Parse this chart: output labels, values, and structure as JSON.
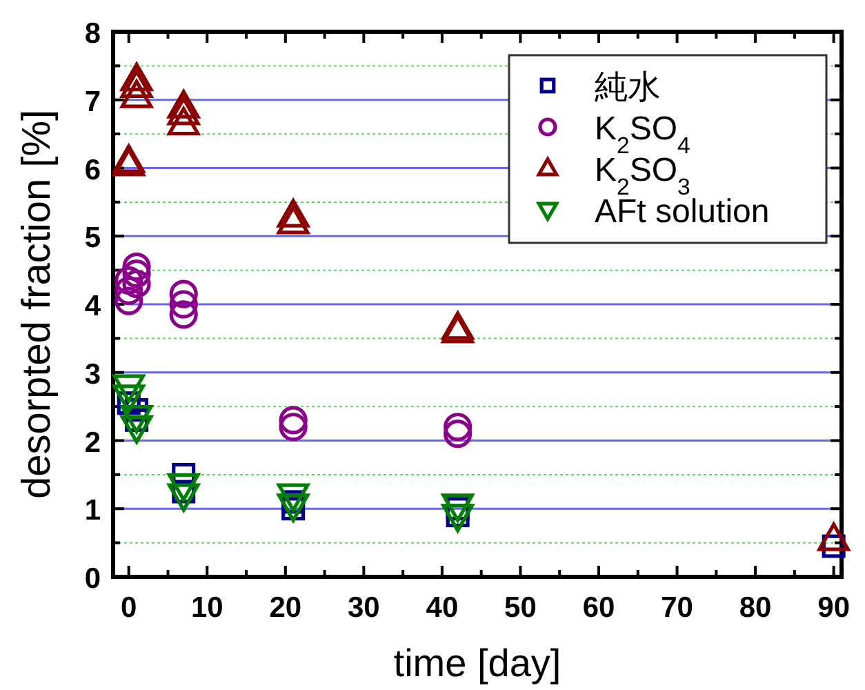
{
  "chart_data": {
    "type": "scatter",
    "xlabel": "time [day]",
    "ylabel": "desorpted fraction [%]",
    "xlim": [
      -2,
      91
    ],
    "ylim": [
      0,
      8
    ],
    "xticks": [
      0,
      {
        "value": 5,
        "label": null
      },
      10,
      {
        "value": 15,
        "label": null
      },
      20,
      {
        "value": 25,
        "label": null
      },
      30,
      {
        "value": 35,
        "label": null
      },
      40,
      {
        "value": 45,
        "label": null
      },
      50,
      {
        "value": 55,
        "label": null
      },
      60,
      {
        "value": 65,
        "label": null
      },
      70,
      {
        "value": 75,
        "label": null
      },
      80,
      {
        "value": 85,
        "label": null
      },
      90
    ],
    "yticks": [
      0,
      {
        "value": 0.5,
        "label": null
      },
      1,
      {
        "value": 1.5,
        "label": null
      },
      2,
      {
        "value": 2.5,
        "label": null
      },
      3,
      {
        "value": 3.5,
        "label": null
      },
      4,
      {
        "value": 4.5,
        "label": null
      },
      5,
      {
        "value": 5.5,
        "label": null
      },
      6,
      {
        "value": 6.5,
        "label": null
      },
      7,
      {
        "value": 7.5,
        "label": null
      },
      8
    ],
    "grid": "y",
    "legend": "top right",
    "series": [
      {
        "name": "純水",
        "color": "#00008b",
        "marker": "square",
        "x": [
          0,
          1,
          1,
          7,
          7,
          21,
          21,
          42,
          42,
          90
        ],
        "values": [
          2.55,
          2.3,
          2.45,
          1.25,
          1.5,
          1.0,
          1.1,
          0.9,
          1.0,
          0.45
        ]
      },
      {
        "name": "K$_{2}$SO$_{4}$",
        "color": "#8b008b",
        "marker": "circle",
        "x": [
          0,
          0,
          0,
          1,
          1,
          1,
          7,
          7,
          7,
          21,
          21,
          42,
          42
        ],
        "values": [
          4.05,
          4.2,
          4.35,
          4.3,
          4.45,
          4.55,
          3.85,
          4.0,
          4.15,
          2.2,
          2.3,
          2.1,
          2.2
        ]
      },
      {
        "name": "K$_{2}$SO$_{3}$",
        "color": "#8b0000",
        "marker": "triangle",
        "x": [
          0,
          0,
          1,
          1,
          1,
          7,
          7,
          7,
          21,
          21,
          42,
          42,
          90
        ],
        "values": [
          6.05,
          6.1,
          7.05,
          7.2,
          7.3,
          6.65,
          6.8,
          6.9,
          5.2,
          5.3,
          3.6,
          3.65,
          0.55
        ]
      },
      {
        "name": "AFt solution",
        "color": "#008000",
        "marker": "triangle-down",
        "x": [
          0,
          0,
          1,
          1,
          7,
          7,
          21,
          21,
          42,
          42
        ],
        "values": [
          2.65,
          2.8,
          2.2,
          2.35,
          1.2,
          1.35,
          1.05,
          1.2,
          0.9,
          1.05
        ]
      }
    ]
  }
}
